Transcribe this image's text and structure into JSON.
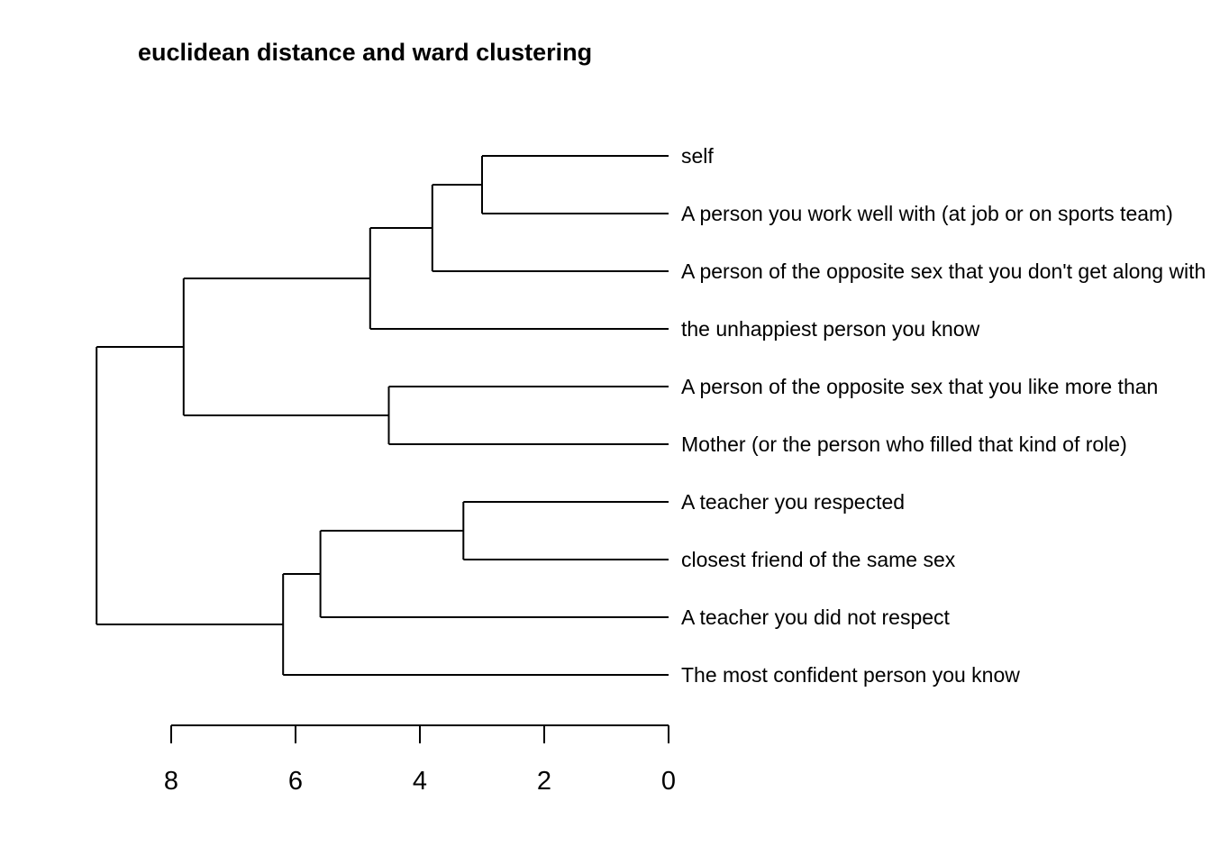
{
  "chart_data": {
    "type": "dendrogram",
    "title": "euclidean distance and ward clustering",
    "orientation": "horizontal",
    "leaves": [
      "self",
      "A person you work well with (at job or on sports team)",
      "A person of the opposite sex that you don't get along with",
      "the unhappiest person you know",
      "A person of the opposite sex that you like more than",
      "Mother (or the person who filled that kind of role)",
      "A teacher you respected",
      "closest friend of the same sex",
      "A teacher you did not respect",
      "The most confident person you know"
    ],
    "merges": [
      {
        "a": "L0",
        "b": "L1",
        "height": 3.0
      },
      {
        "a": "M0",
        "b": "L2",
        "height": 3.8
      },
      {
        "a": "M1",
        "b": "L3",
        "height": 4.8
      },
      {
        "a": "L4",
        "b": "L5",
        "height": 4.5
      },
      {
        "a": "M2",
        "b": "M3",
        "height": 7.8
      },
      {
        "a": "L6",
        "b": "L7",
        "height": 3.3
      },
      {
        "a": "M5",
        "b": "L8",
        "height": 5.6
      },
      {
        "a": "M6",
        "b": "L9",
        "height": 6.2
      },
      {
        "a": "M4",
        "b": "M7",
        "height": 9.2
      }
    ],
    "axis": {
      "ticks": [
        8,
        6,
        4,
        2,
        0
      ],
      "range": [
        8,
        0
      ]
    }
  }
}
